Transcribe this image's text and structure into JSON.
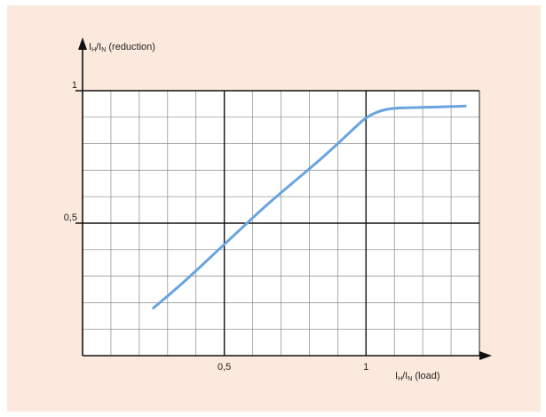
{
  "chart_data": {
    "type": "line",
    "title": "",
    "ylabel": {
      "main": "I",
      "sub1": "H",
      "sep": "/I",
      "sub2": "N",
      "suffix": " (reduction)"
    },
    "xlabel": {
      "main": "I",
      "sub1": "H",
      "sep": "/I",
      "sub2": "N",
      "suffix": " (load)"
    },
    "xlim": [
      0,
      1.4
    ],
    "ylim": [
      0,
      1
    ],
    "x_ticks": [
      {
        "value": 0.5,
        "label": "0,5"
      },
      {
        "value": 1,
        "label": "1"
      }
    ],
    "y_ticks": [
      {
        "value": 0.5,
        "label": "0,5"
      },
      {
        "value": 1,
        "label": "1"
      }
    ],
    "grid": true,
    "minor_grid_step": 0.1,
    "series": [
      {
        "x": [
          0.25,
          0.35,
          0.45,
          0.55,
          0.65,
          0.75,
          0.85,
          0.95,
          1.0,
          1.05,
          1.1,
          1.2,
          1.3,
          1.35
        ],
        "y": [
          0.18,
          0.27,
          0.37,
          0.47,
          0.57,
          0.66,
          0.75,
          0.85,
          0.9,
          0.925,
          0.935,
          0.937,
          0.94,
          0.942
        ],
        "color": "#6aa4e0"
      }
    ]
  }
}
